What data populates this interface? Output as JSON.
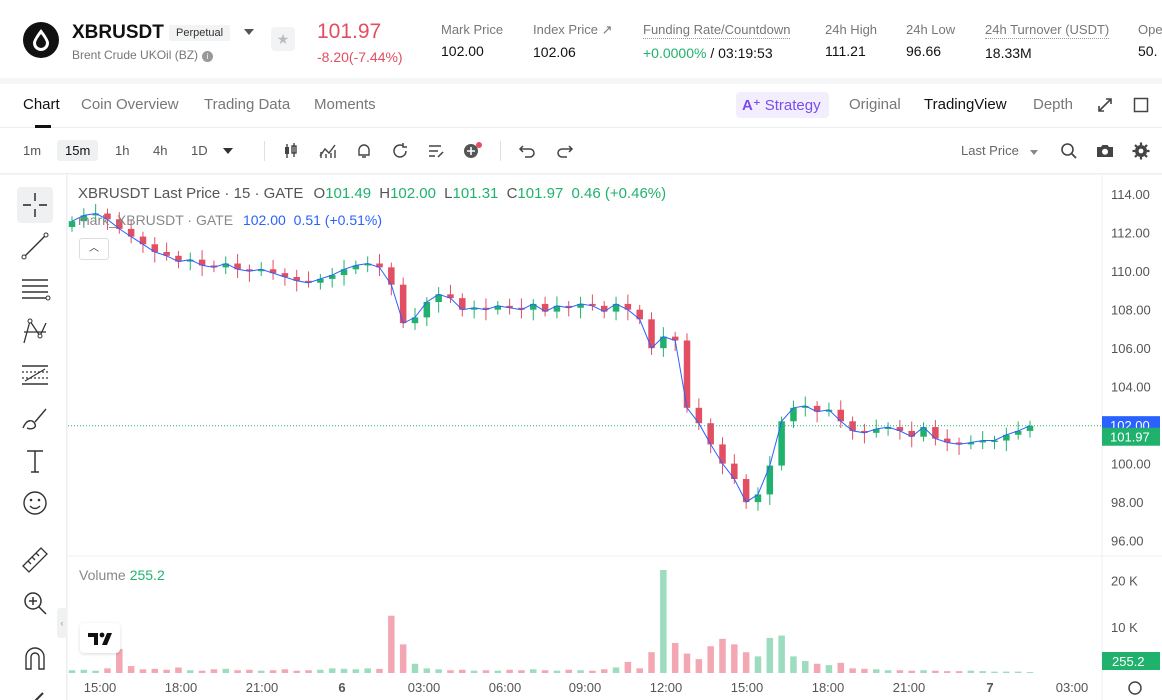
{
  "header": {
    "symbol": "XBRUSDT",
    "contract_type": "Perpetual",
    "subtitle": "Brent Crude UKOil (BZ)",
    "last_price": "101.97",
    "change": "-8.20(-7.44%)",
    "stats": [
      {
        "label": "Mark Price",
        "value": "102.00"
      },
      {
        "label": "Index Price ↗",
        "value": "102.06"
      },
      {
        "label": "Funding Rate/Countdown",
        "value_up": "+0.0000%",
        "value": " / 03:19:53"
      },
      {
        "label": "24h High",
        "value": "111.21"
      },
      {
        "label": "24h Low",
        "value": "96.66"
      },
      {
        "label": "24h Turnover (USDT)",
        "value": "18.33M"
      },
      {
        "label": "Ope",
        "value": "50."
      }
    ]
  },
  "tabs": {
    "items": [
      "Chart",
      "Coin Overview",
      "Trading Data",
      "Moments"
    ],
    "right": [
      "Strategy",
      "Original",
      "TradingView",
      "Depth"
    ]
  },
  "toolbar": {
    "timeframes": [
      "1m",
      "15m",
      "1h",
      "4h",
      "1D"
    ],
    "active_timeframe": "15m",
    "price_source": "Last Price"
  },
  "legend": {
    "main": "XBRUSDT Last Price · 15 · GATE",
    "o": "101.49",
    "h": "102.00",
    "l": "101.31",
    "c": "101.97",
    "chg": "0.46 (+0.46%)",
    "mark_label": "mark_XBRUSDT · GATE",
    "mark_value": "102.00",
    "mark_chg": "0.51 (+0.51%)",
    "volume_label": "Volume",
    "volume_value": "255.2"
  },
  "chart_data": {
    "type": "candlestick",
    "y_ticks": [
      "114.00",
      "112.00",
      "110.00",
      "108.00",
      "106.00",
      "104.00",
      "102.00",
      "100.00",
      "98.00",
      "96.00"
    ],
    "ylim": [
      95.2,
      115.0
    ],
    "volume_ticks": [
      "20 K",
      "10 K"
    ],
    "x_ticks": [
      "15:00",
      "18:00",
      "21:00",
      "6",
      "03:00",
      "06:00",
      "09:00",
      "12:00",
      "15:00",
      "18:00",
      "21:00",
      "7",
      "03:00"
    ],
    "mark_price_tag": "102.00",
    "last_price_tag": "101.97",
    "volume_tag": "255.2",
    "close_series": [
      112.6,
      112.9,
      113.0,
      112.7,
      112.2,
      111.8,
      111.4,
      111.0,
      110.8,
      110.5,
      110.6,
      110.3,
      110.2,
      110.4,
      110.1,
      110.0,
      110.1,
      109.9,
      109.7,
      109.5,
      109.4,
      109.6,
      109.8,
      110.1,
      110.3,
      110.4,
      110.2,
      109.3,
      107.3,
      107.6,
      108.4,
      108.8,
      108.6,
      108.0,
      108.1,
      108.0,
      108.2,
      108.1,
      108.0,
      108.3,
      107.9,
      108.2,
      108.1,
      108.3,
      108.2,
      107.9,
      108.3,
      108.0,
      107.5,
      106.0,
      106.6,
      106.4,
      102.9,
      102.1,
      101.0,
      100.0,
      99.2,
      98.0,
      98.4,
      99.9,
      102.2,
      102.9,
      103.0,
      102.7,
      102.8,
      102.2,
      101.7,
      101.6,
      101.8,
      101.9,
      101.7,
      101.4,
      101.9,
      101.3,
      101.1,
      101.0,
      101.1,
      101.2,
      101.2,
      101.5,
      101.7,
      101.97
    ],
    "volume_series": [
      0.6,
      0.7,
      0.5,
      1.0,
      5.2,
      1.5,
      0.8,
      0.9,
      0.7,
      1.2,
      0.6,
      0.5,
      0.8,
      0.9,
      0.6,
      0.7,
      0.5,
      0.6,
      0.8,
      0.5,
      0.6,
      0.7,
      1.0,
      0.9,
      0.8,
      1.0,
      0.9,
      12.4,
      6.2,
      2.0,
      1.0,
      0.8,
      0.6,
      0.7,
      0.5,
      0.6,
      0.5,
      0.7,
      0.6,
      0.8,
      0.6,
      0.5,
      0.7,
      0.6,
      0.5,
      0.8,
      1.2,
      2.4,
      1.0,
      4.5,
      22.3,
      6.5,
      4.2,
      3.0,
      5.8,
      7.4,
      6.2,
      4.5,
      3.6,
      7.6,
      8.1,
      3.6,
      2.6,
      2.0,
      1.7,
      2.2,
      1.0,
      0.9,
      0.8,
      0.6,
      0.6,
      0.5,
      0.6,
      0.5,
      0.4,
      0.4,
      0.5,
      0.4,
      0.3,
      0.3,
      0.3,
      0.2
    ]
  },
  "colors": {
    "up": "#20b26c",
    "down": "#e24e62",
    "accent": "#7a4cf0",
    "mark_line": "#2962ff"
  }
}
